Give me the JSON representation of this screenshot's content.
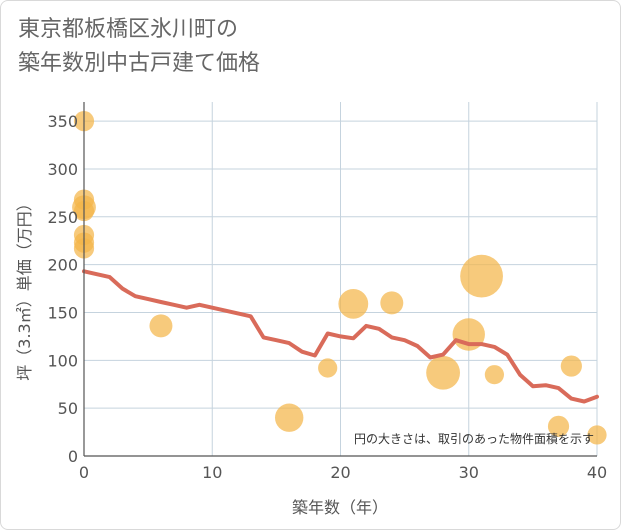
{
  "title_lines": [
    "東京都板橋区氷川町の",
    "築年数別中古戸建て価格"
  ],
  "chart_data": {
    "type": "scatter+line",
    "title": "東京都板橋区氷川町の築年数別中古戸建て価格",
    "xlabel": "築年数（年）",
    "ylabel": "坪（3.3㎡）単価（万円）",
    "xlim": [
      0,
      40
    ],
    "ylim": [
      0,
      370
    ],
    "xticks": [
      0,
      10,
      20,
      30,
      40
    ],
    "yticks": [
      0,
      50,
      100,
      150,
      200,
      250,
      300,
      350
    ],
    "grid": true,
    "note": "円の大きさは、取引のあった物件面積を示す",
    "scatter": [
      {
        "x": 0,
        "y": 350,
        "size": 1
      },
      {
        "x": 0,
        "y": 268,
        "size": 1
      },
      {
        "x": 0,
        "y": 260,
        "size": 1.4
      },
      {
        "x": 0,
        "y": 256,
        "size": 1
      },
      {
        "x": 0,
        "y": 231,
        "size": 1
      },
      {
        "x": 0,
        "y": 223,
        "size": 1
      },
      {
        "x": 0,
        "y": 217,
        "size": 1
      },
      {
        "x": 6,
        "y": 136,
        "size": 1.3
      },
      {
        "x": 16,
        "y": 40,
        "size": 2
      },
      {
        "x": 19,
        "y": 92,
        "size": 0.9
      },
      {
        "x": 21,
        "y": 159,
        "size": 2.2
      },
      {
        "x": 24,
        "y": 160,
        "size": 1.3
      },
      {
        "x": 28,
        "y": 87,
        "size": 2.8
      },
      {
        "x": 30,
        "y": 127,
        "size": 2.6
      },
      {
        "x": 31,
        "y": 188,
        "size": 4.5
      },
      {
        "x": 32,
        "y": 85,
        "size": 0.9
      },
      {
        "x": 37,
        "y": 31,
        "size": 1.1
      },
      {
        "x": 38,
        "y": 94,
        "size": 1.1
      },
      {
        "x": 40,
        "y": 22,
        "size": 0.9
      }
    ],
    "line": {
      "x": [
        0,
        1,
        2,
        3,
        4,
        5,
        6,
        7,
        8,
        9,
        10,
        11,
        12,
        13,
        14,
        15,
        16,
        17,
        18,
        19,
        20,
        21,
        22,
        23,
        24,
        25,
        26,
        27,
        28,
        29,
        30,
        31,
        32,
        33,
        34,
        35,
        36,
        37,
        38,
        39,
        40
      ],
      "y": [
        193,
        190,
        187,
        175,
        167,
        164,
        161,
        158,
        155,
        158,
        155,
        152,
        149,
        146,
        124,
        121,
        118,
        109,
        105,
        128,
        125,
        123,
        136,
        133,
        124,
        121,
        115,
        103,
        106,
        121,
        117,
        117,
        114,
        106,
        85,
        73,
        74,
        71,
        60,
        57,
        62
      ]
    },
    "colors": {
      "scatter": "#f4b64a",
      "line": "#d96b5a",
      "grid": "#c5d3de",
      "axis": "#555555"
    }
  }
}
